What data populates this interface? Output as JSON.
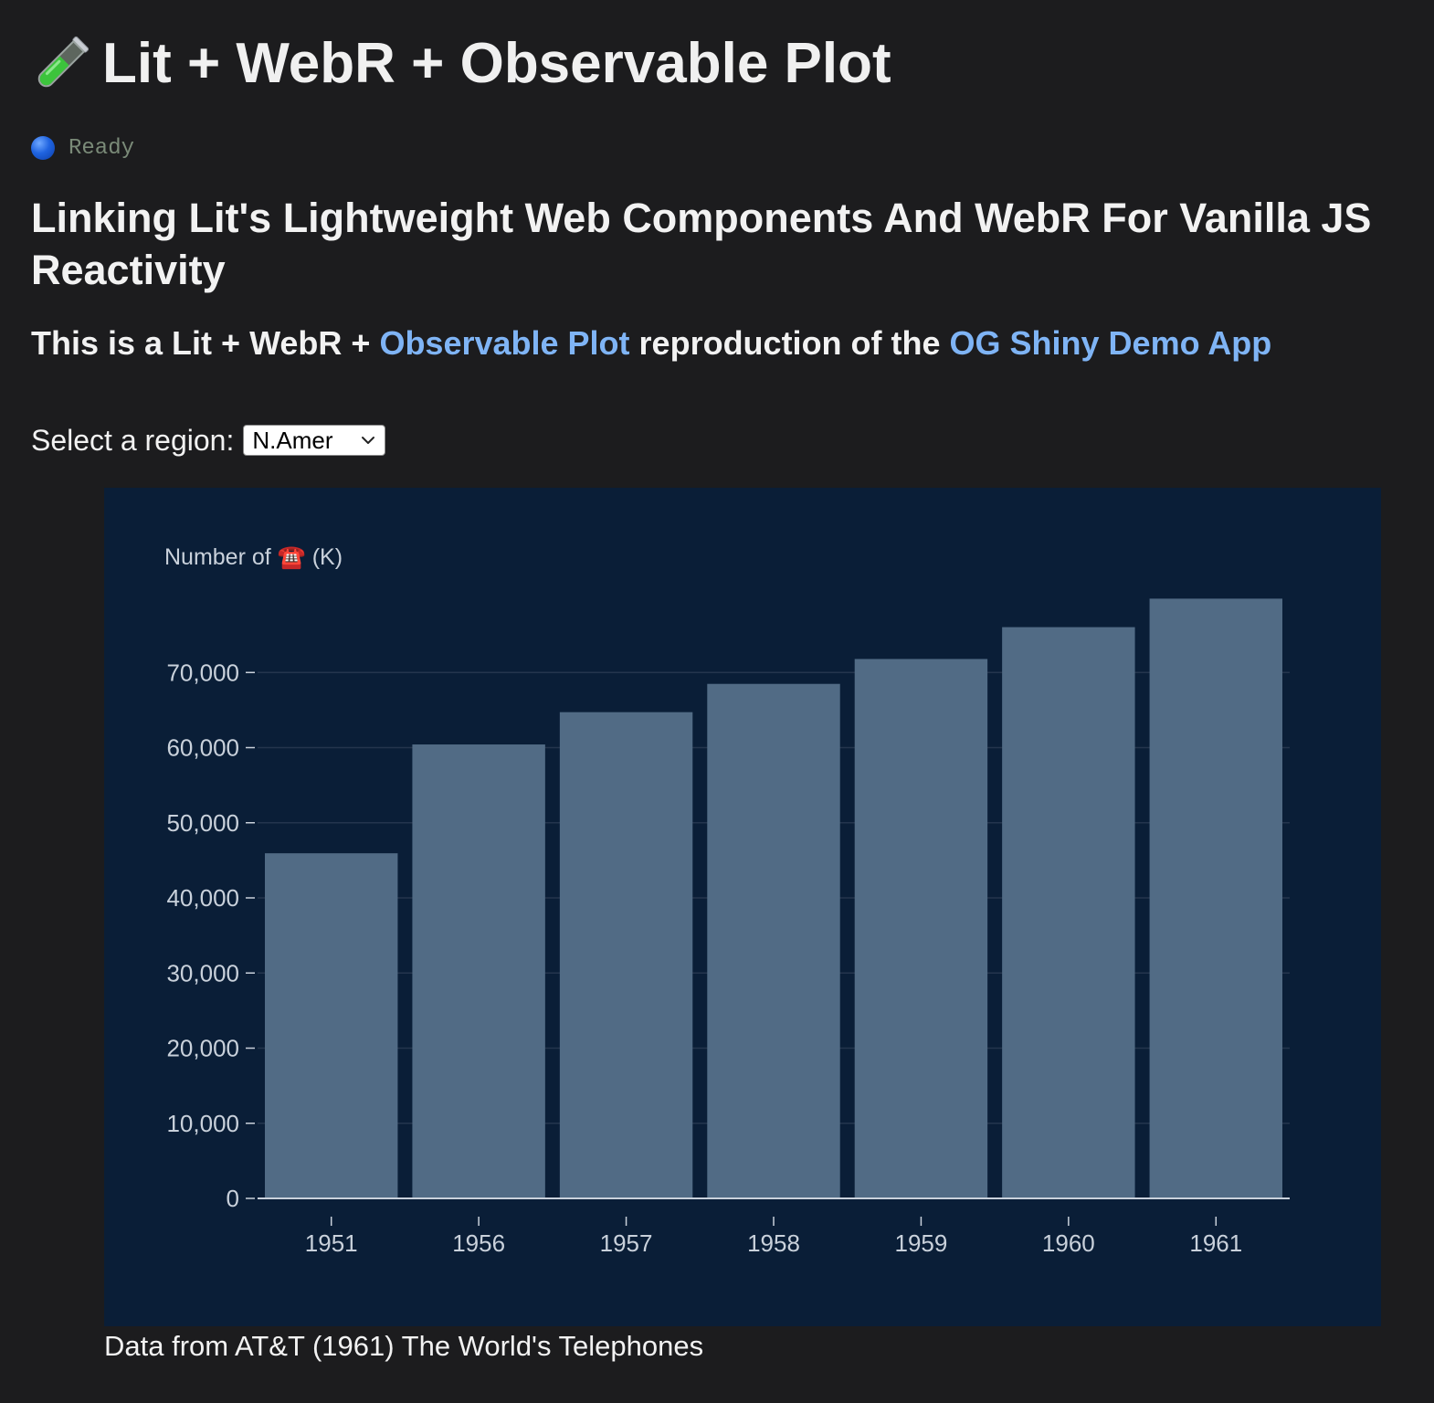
{
  "header": {
    "title": "Lit + WebR + Observable Plot",
    "title_icon": "test-tube-icon"
  },
  "status": {
    "icon": "blue-circle-icon",
    "text": "Ready",
    "color": "#1f63e0"
  },
  "main": {
    "subtitle": "Linking Lit's Lightweight Web Components And WebR For Vanilla JS Reactivity",
    "intro": {
      "prefix": "This is a Lit + WebR + ",
      "link1": "Observable Plot",
      "middle": " reproduction of the ",
      "link2": "OG Shiny Demo App"
    },
    "link_color": "#7fb4f5",
    "region_select": {
      "label": "Select a region:",
      "value": "N.Amer"
    },
    "caption": "Data from AT&T (1961) The World's Telephones"
  },
  "chart_data": {
    "type": "bar",
    "categories": [
      "1951",
      "1956",
      "1957",
      "1958",
      "1959",
      "1960",
      "1961"
    ],
    "values": [
      45939,
      60423,
      64721,
      68484,
      71799,
      76036,
      79831
    ],
    "ylabel": "Number of ☎️ (K)",
    "ylim": [
      0,
      80000
    ],
    "yticks": [
      0,
      10000,
      20000,
      30000,
      40000,
      50000,
      60000,
      70000
    ],
    "ytick_labels": [
      "0",
      "10,000",
      "20,000",
      "30,000",
      "40,000",
      "50,000",
      "60,000",
      "70,000"
    ],
    "grid": true,
    "background": "#0a1e37",
    "bar_color": "#516b85"
  }
}
